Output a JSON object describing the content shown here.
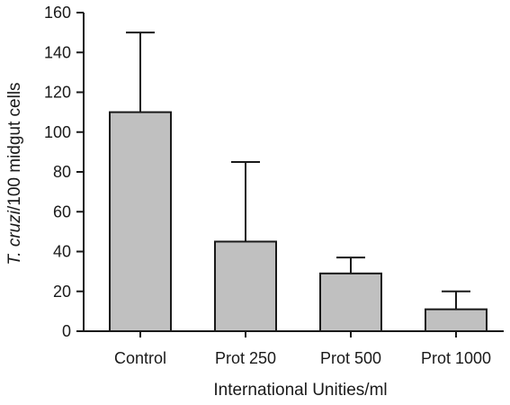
{
  "chart_data": {
    "type": "bar",
    "categories": [
      "Control",
      "Prot 250",
      "Prot 500",
      "Prot 1000"
    ],
    "values": [
      110,
      45,
      29,
      11
    ],
    "error_upper": [
      150,
      85,
      37,
      20
    ],
    "ylim": [
      0,
      160
    ],
    "yticks": [
      0,
      20,
      40,
      60,
      80,
      100,
      120,
      140,
      160
    ],
    "xlabel": "International Unities/ml",
    "ylabel_italic": "T. cruzi",
    "ylabel_rest": "/100 midgut cells",
    "grid": false,
    "bar_color": "#c0c0c0",
    "edge_color": "#1a1a1a"
  }
}
